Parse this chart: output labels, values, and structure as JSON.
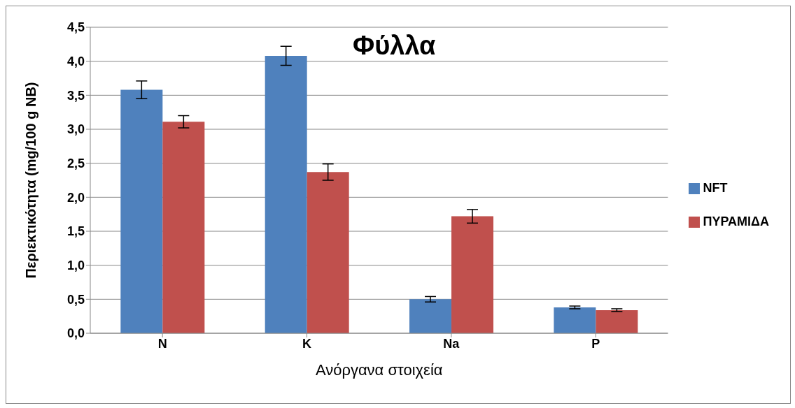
{
  "chart_data": {
    "type": "bar",
    "title": "Φύλλα",
    "xlabel": "Ανόργανα στοιχεία",
    "ylabel": "Περιεκτικότητα (mg/100 g NB)",
    "categories": [
      "N",
      "K",
      "Na",
      "P"
    ],
    "series": [
      {
        "name": "NFT",
        "color": "#4f81bd",
        "values": [
          3.58,
          4.08,
          0.5,
          0.38
        ],
        "errors": [
          0.13,
          0.14,
          0.04,
          0.02
        ]
      },
      {
        "name": "ΠΥΡΑΜΙΔΑ",
        "color": "#c0504d",
        "values": [
          3.11,
          2.37,
          1.72,
          0.34
        ],
        "errors": [
          0.09,
          0.12,
          0.1,
          0.02
        ]
      }
    ],
    "ylim": [
      0,
      4.5
    ],
    "yticks": [
      {
        "value": 0,
        "label": "0,0"
      },
      {
        "value": 0.5,
        "label": "0,5"
      },
      {
        "value": 1,
        "label": "1,0"
      },
      {
        "value": 1.5,
        "label": "1,5"
      },
      {
        "value": 2,
        "label": "2,0"
      },
      {
        "value": 2.5,
        "label": "2,5"
      },
      {
        "value": 3,
        "label": "3,0"
      },
      {
        "value": 3.5,
        "label": "3,5"
      },
      {
        "value": 4,
        "label": "4,0"
      },
      {
        "value": 4.5,
        "label": "4,5"
      }
    ],
    "grid": "y",
    "legend": "right"
  }
}
